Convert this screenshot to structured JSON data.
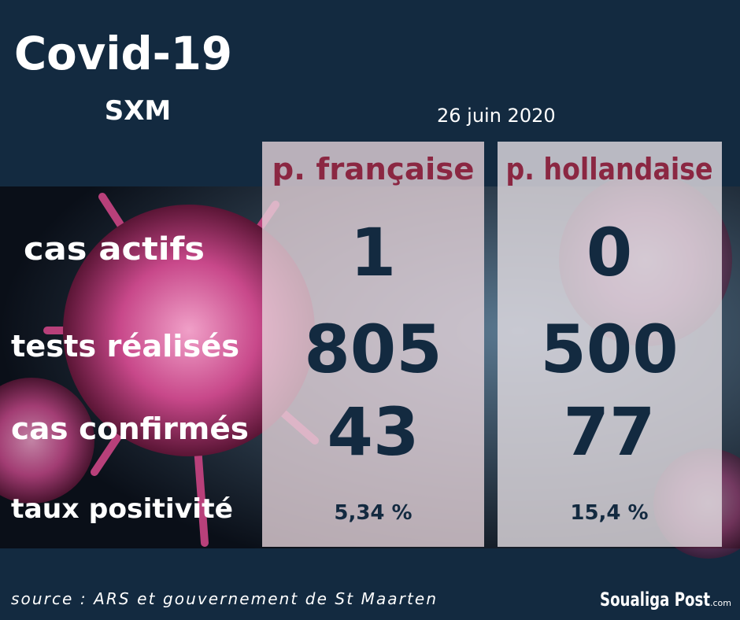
{
  "header": {
    "title": "Covid-19",
    "subtitle": "SXM",
    "date": "26 juin 2020"
  },
  "table": {
    "columns": [
      "p. française",
      "p. hollandaise"
    ],
    "rows": [
      {
        "label": "cas actifs",
        "values": [
          1,
          0
        ]
      },
      {
        "label": "tests réalisés",
        "values": [
          805,
          500
        ]
      },
      {
        "label": "cas confirmés",
        "values": [
          43,
          77
        ]
      },
      {
        "label": "taux positivité",
        "values": [
          "5,34 %",
          "15,4 %"
        ]
      }
    ]
  },
  "footer": {
    "source": "source : ARS et gouvernement de St Maarten",
    "logo": "Soualiga Post",
    "logo_suffix": ".com"
  }
}
